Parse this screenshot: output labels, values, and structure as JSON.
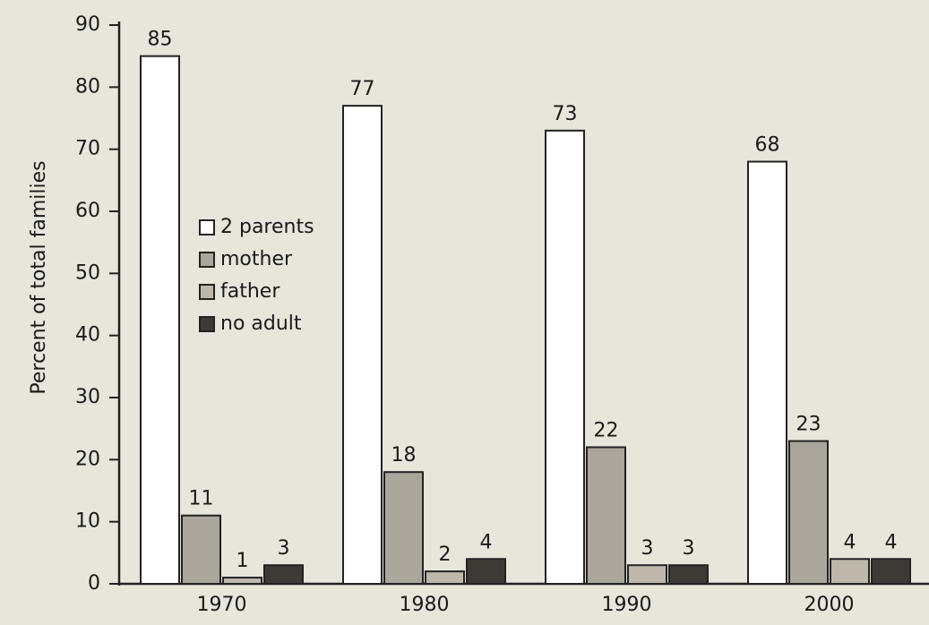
{
  "chart_data": {
    "type": "bar",
    "ylabel": "Percent of total families",
    "categories": [
      "1970",
      "1980",
      "1990",
      "2000"
    ],
    "series": [
      {
        "name": "2 parents",
        "color": "#ffffff",
        "values": [
          85,
          77,
          73,
          68
        ]
      },
      {
        "name": "mother",
        "color": "#aaa69c",
        "values": [
          11,
          18,
          22,
          23
        ]
      },
      {
        "name": "father",
        "color": "#bdb8ab",
        "values": [
          1,
          2,
          3,
          4
        ]
      },
      {
        "name": "no adult",
        "color": "#3d3a36",
        "values": [
          3,
          4,
          3,
          4
        ]
      }
    ],
    "ylim": [
      0,
      90
    ],
    "yticks": [
      0,
      10,
      20,
      30,
      40,
      50,
      60,
      70,
      80,
      90
    ]
  }
}
